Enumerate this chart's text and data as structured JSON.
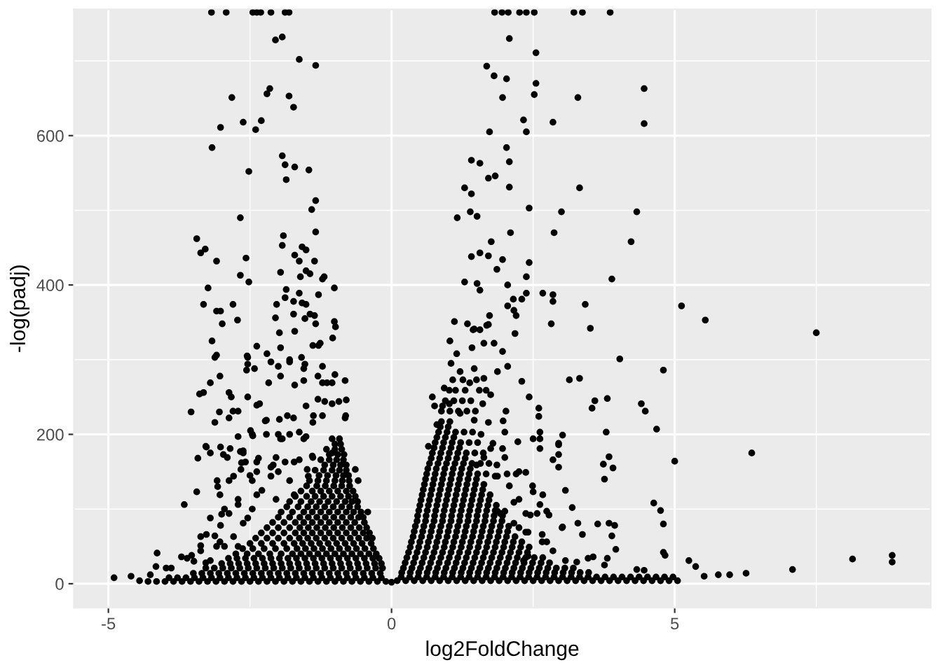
{
  "chart_data": {
    "type": "scatter",
    "xlabel": "log2FoldChange",
    "ylabel": "-log(padj)",
    "color": "#000000",
    "marker": "circle",
    "xlim": [
      -5.61,
      9.52
    ],
    "ylim": [
      -32,
      769
    ],
    "xticks": [
      -5,
      0,
      5
    ],
    "yticks": [
      0,
      200,
      400,
      600
    ],
    "grid": true,
    "x": [
      -3.18,
      -2.92,
      -2.45,
      -2.38,
      -2.31,
      -2.13,
      -1.88,
      -1.81,
      1.82,
      1.95,
      2.06,
      2.26,
      2.38,
      2.52,
      3.22,
      3.37,
      3.86,
      -2.05,
      -1.93,
      -1.63,
      -1.34,
      -2.82,
      -2.2,
      -2.15,
      -1.81,
      -1.73,
      -3.02,
      -2.62,
      -2.4,
      -2.3,
      -3.17,
      -2.52,
      -1.93,
      -1.88,
      -1.71,
      -1.46,
      -1.86,
      -1.34,
      -1.41,
      -2.67,
      -1.34,
      -3.44,
      -1.91,
      -3.37,
      -3.29,
      -3.09,
      -1.93,
      -1.58,
      -1.51,
      -2.57,
      -1.71,
      -1.63,
      -1.36,
      -1.96,
      -2.67,
      -2.52,
      -1.51,
      -1.44,
      -1.19,
      -1.22,
      -1.61,
      -3.24,
      -1.01,
      -1.86,
      -1.88,
      -1.63,
      -1.29,
      -3.32,
      -2.8,
      -3.09,
      -3.02,
      -2.03,
      -2.05,
      -1.73,
      -1.58,
      -1.51,
      -1.73,
      -1.44,
      -1.36,
      -1.53,
      -2.99,
      -2.72,
      -1.01,
      -0.99,
      -1.34,
      -4.9,
      -4.6,
      -4.26,
      -4.16,
      -3.89,
      -3.71,
      -3.66,
      -3.44,
      -3.42,
      -3.27,
      -3.54,
      -3.39,
      -3.17,
      -3.12,
      -3.09,
      -3.27,
      -3.37,
      -3.09,
      -3.12,
      -3.02,
      -3.0,
      -3.07,
      -2.87,
      -2.97,
      -2.9,
      -3.02,
      -2.85,
      -3.12,
      -3.04,
      -2.87,
      -2.8,
      -2.55,
      -2.38,
      -2.2,
      -1.98,
      -1.71,
      -1.29,
      -1.04,
      -2.56,
      -2.38,
      -2.23,
      -1.98,
      -1.73,
      -2.49,
      -2.45,
      -2.0,
      -1.93,
      -2.67,
      -2.65,
      -2.5,
      -2.35,
      -2.13,
      -2.0,
      -1.63,
      -1.49,
      -1.4,
      -0.82,
      -0.8,
      -0.82,
      -1.0,
      -1.14,
      -0.64,
      -0.59,
      -0.42,
      -1.96,
      -2.54,
      -2.42,
      -2.13,
      -2.0,
      -1.8,
      -1.59,
      -1.53,
      -1.39,
      -1.26,
      -1.22,
      -1.22,
      -3.2,
      -3.03,
      -3.32,
      -2.87,
      -2.83,
      -2.54,
      -2.71,
      -2.17,
      -1.96,
      -1.71,
      -1.55,
      -2.33,
      -2.21,
      -1.84,
      -1.51,
      -1.38,
      -1.3,
      -1.18,
      -1.05,
      -1.63,
      -1.51,
      -2.71,
      -3.28,
      -3.2,
      -2.62,
      -2.58,
      -3.08,
      -2.66,
      -2.38,
      -2.09,
      -1.88,
      -4.14,
      -3.98,
      -3.49,
      -3.61,
      -3.28,
      -3.37,
      -2.95,
      -2.79,
      -2.62,
      -2.46,
      -2.71,
      -2.29,
      -2.95,
      1.41,
      1.29,
      1.41,
      1.39,
      1.16,
      1.41,
      1.29,
      1.11,
      1.34,
      2.08,
      2.55,
      1.68,
      1.81,
      2.03,
      2.55,
      1.96,
      2.52,
      3.29,
      4.46,
      4.46,
      2.33,
      2.85,
      1.73,
      2.38,
      2.03,
      1.56,
      2.08,
      1.71,
      1.83,
      2.08,
      3.32,
      2.43,
      3.0,
      4.33,
      1.51,
      2.1,
      2.87,
      4.23,
      1.76,
      1.56,
      1.71,
      1.96,
      2.43,
      1.86,
      2.38,
      3.89,
      1.51,
      2.05,
      1.56,
      2.38,
      2.67,
      2.85,
      2.15,
      2.3,
      2.85,
      2.05,
      3.42,
      5.12,
      5.54,
      7.5,
      2.16,
      2.2,
      1.73,
      1.68,
      2.82,
      3.51,
      1.44,
      1.56,
      2.18,
      4.03,
      4.8,
      3.14,
      3.32,
      2.3,
      2.05,
      2.43,
      2.6,
      2.6,
      3.54,
      3.59,
      3.81,
      4.41,
      4.48,
      4.68,
      3.79,
      3.02,
      2.5,
      2.62,
      2.95,
      2.95,
      2.85,
      2.95,
      2.23,
      3.84,
      3.74,
      3.91,
      3.76,
      5.0,
      6.36,
      3.07,
      2.5,
      2.67,
      3.19,
      4.63,
      4.75,
      4.8,
      3.64,
      3.84,
      3.94,
      3.29,
      3.02,
      3.89,
      3.96,
      3.37,
      4.8,
      4.83,
      3.47,
      3.56,
      3.81,
      3.76,
      5.25,
      5.37,
      7.08,
      8.14,
      8.84,
      8.84,
      6.26,
      5.97,
      5.77,
      5.52,
      4.33,
      4.46,
      3.27,
      1.46,
      1.71,
      1.03,
      1.15,
      1.42,
      1.63,
      1.81,
      1.96,
      1.05,
      1.21,
      1.46,
      1.63,
      1.87,
      0.93,
      1.13,
      1.38,
      0.72,
      0.76,
      1.67,
      1.75,
      0.9,
      1.02,
      1.61,
      2.02,
      0.65,
      0.8,
      1.21,
      1.46,
      1.71,
      1.97,
      2.0,
      1.79,
      1.96,
      1.58,
      1.63,
      1.86,
      1.87,
      2.04,
      2.2,
      2.37,
      1.67,
      1.5,
      2.62,
      2.62,
      2.95,
      2.16,
      1.87,
      2.0,
      2.37,
      2.45,
      2.62,
      2.74,
      2.78,
      3.01,
      2.66,
      2.74,
      2.25,
      2.37,
      2.85,
      2.41,
      2.33,
      -4.3,
      -4.15,
      -4.0,
      -3.85,
      -3.7,
      -3.55,
      -3.4,
      -3.25,
      -3.1,
      -2.95,
      -2.8,
      -2.65,
      -2.5,
      -2.35,
      -2.2,
      -2.05,
      -1.9,
      -1.75,
      -1.6,
      -1.45,
      -1.3,
      -1.15,
      -1.0,
      -0.85,
      -0.7,
      -0.55,
      -0.4,
      -0.25,
      -0.1,
      0,
      -3.5,
      -3.35,
      -3.2,
      -3.05,
      -2.9,
      -2.75,
      -2.6,
      -2.45,
      -2.3,
      -2.15,
      -2.0,
      -1.85,
      -1.7,
      -1.55,
      -1.4,
      -1.25,
      -1.1,
      -0.95,
      -0.8,
      -0.65,
      -0.5,
      -0.35,
      -0.2,
      -3.0,
      -2.85,
      -2.7,
      -2.55,
      -2.4,
      -2.25,
      -2.1,
      -1.95,
      -1.8,
      -1.65,
      -1.5,
      -1.35,
      -1.2,
      -1.05,
      -0.9,
      -0.75,
      -0.6,
      -0.45,
      -0.3,
      -0.18,
      -2.75,
      -2.55,
      -2.35,
      -2.15,
      -1.95,
      -1.75,
      -1.6,
      -1.45,
      -1.3,
      -1.15,
      -1.0,
      -0.85,
      -0.7,
      -0.55,
      -0.4,
      -0.27,
      -2.5,
      -2.3,
      -2.1,
      -1.9,
      -1.72,
      -1.57,
      -1.42,
      -1.27,
      -1.12,
      -0.97,
      -0.82,
      -0.67,
      -0.52,
      -0.36,
      -2.3,
      -2.1,
      -1.9,
      -1.7,
      -1.55,
      -1.4,
      -1.25,
      -1.1,
      -0.95,
      -0.8,
      -0.65,
      -0.5,
      -0.39,
      -2.1,
      -1.9,
      -1.7,
      -1.55,
      -1.4,
      -1.25,
      -1.1,
      -0.95,
      -0.8,
      -0.65,
      -0.48,
      -1.95,
      -1.75,
      -1.55,
      -1.4,
      -1.25,
      -1.1,
      -0.95,
      -0.8,
      -0.67,
      -0.54,
      -1.8,
      -1.6,
      -1.42,
      -1.27,
      -1.12,
      -0.97,
      -0.82,
      -0.7,
      -0.6,
      -1.6,
      -1.4,
      -1.25,
      -1.1,
      -0.95,
      -0.8,
      -0.68,
      -1.45,
      -1.3,
      -1.15,
      -1.0,
      -0.87,
      -0.75,
      -1.35,
      -1.2,
      -1.05,
      -0.92,
      -0.8,
      -1.25,
      -1.1,
      -0.97,
      -0.85,
      -1.15,
      -1.0,
      -0.88,
      -1.05,
      -0.92,
      0.1,
      0.25,
      0.4,
      0.55,
      0.7,
      0.85,
      1.0,
      1.15,
      1.3,
      1.45,
      1.6,
      1.75,
      1.9,
      2.05,
      2.2,
      2.35,
      2.5,
      2.65,
      2.8,
      2.95,
      3.1,
      3.25,
      3.4,
      3.55,
      3.7,
      3.85,
      4.0,
      4.15,
      4.3,
      4.45,
      4.6,
      4.75,
      4.9,
      5.05,
      0.18,
      0.33,
      0.48,
      0.63,
      0.78,
      0.93,
      1.08,
      1.23,
      1.38,
      1.53,
      1.68,
      1.83,
      1.98,
      2.13,
      2.28,
      2.43,
      2.58,
      2.73,
      2.88,
      3.03,
      3.18,
      3.33,
      3.48,
      0.24,
      0.39,
      0.54,
      0.69,
      0.84,
      0.99,
      1.14,
      1.29,
      1.44,
      1.59,
      1.74,
      1.89,
      2.04,
      2.19,
      2.34,
      2.49,
      2.64,
      2.79,
      0.3,
      0.45,
      0.6,
      0.75,
      0.9,
      1.05,
      1.2,
      1.35,
      1.5,
      1.65,
      1.8,
      1.95,
      2.1,
      2.25,
      2.4,
      0.35,
      0.5,
      0.65,
      0.8,
      0.95,
      1.1,
      1.25,
      1.4,
      1.55,
      1.7,
      1.85,
      2.0,
      2.15,
      2.3,
      0.4,
      0.55,
      0.7,
      0.85,
      1.0,
      1.15,
      1.3,
      1.45,
      1.6,
      1.75,
      1.9,
      2.05,
      0.45,
      0.6,
      0.75,
      0.9,
      1.05,
      1.2,
      1.35,
      1.5,
      1.65,
      1.8,
      1.95,
      0.48,
      0.63,
      0.78,
      0.93,
      1.08,
      1.23,
      1.38,
      1.53,
      1.68,
      1.83,
      0.52,
      0.67,
      0.82,
      0.97,
      1.12,
      1.27,
      1.42,
      1.57,
      1.72,
      0.56,
      0.71,
      0.86,
      1.01,
      1.16,
      1.31,
      1.46,
      1.61,
      0.6,
      0.75,
      0.9,
      1.05,
      1.2,
      1.35,
      1.5,
      0.64,
      0.79,
      0.94,
      1.09,
      1.24,
      1.39,
      0.7,
      0.85,
      1.0,
      1.15,
      1.3,
      0.75,
      0.9,
      1.05,
      1.2,
      0.8,
      0.95,
      1.1,
      0.86,
      1.0,
      -4.45,
      -2.54,
      -1.8,
      -1.55,
      -1.3,
      -1.05,
      -0.93,
      -0.81,
      -1.22,
      -1.39,
      -1.55,
      -1.8,
      -1.96,
      -2.21,
      -2.46,
      -2.62,
      -2.38,
      -2.04,
      -1.72,
      -1.39,
      -1.05,
      -2.79,
      -2.46,
      -2.13,
      -1.8,
      -1.47,
      -3.03,
      -2.71,
      -2.38,
      -2.04,
      -1.72,
      -3.2,
      -2.87,
      -2.54,
      -3.37,
      -3.03,
      -2.71,
      -3.53,
      -3.2,
      -3.93,
      -3.78,
      -3.63,
      -3.48,
      -3.33,
      -3.18,
      -3.03,
      -2.88,
      -2.73,
      -2.58,
      -2.43,
      -2.28,
      -2.13,
      -1.98,
      -1.83,
      -1.68,
      -1.53,
      -1.38,
      -1.23,
      -1.08,
      -0.93,
      -0.78,
      -0.63,
      -0.48,
      -0.33,
      -0.18,
      -3.28,
      -3.13,
      -2.98,
      -2.83,
      -2.68,
      -2.53,
      -2.38,
      -2.23,
      -2.08,
      -1.93,
      -1.78,
      -1.63,
      -1.48,
      -1.33,
      -1.18,
      -1.03,
      -0.88,
      -0.73,
      -0.58,
      -0.43,
      -0.28,
      -0.16,
      -2.88,
      -2.73,
      -2.58,
      -2.43,
      -2.28,
      -2.13,
      -1.98,
      -1.83,
      -1.68,
      -1.53,
      -1.38,
      -1.23,
      -1.08,
      -0.93,
      -0.78,
      -0.63,
      -0.48,
      -0.33,
      -0.22,
      -2.63,
      -2.45,
      -2.25,
      -2.05,
      -1.85,
      -1.67,
      -1.52,
      -1.37,
      -1.22,
      -1.07,
      -0.92,
      -0.77,
      -0.62,
      -0.47,
      -0.32,
      -2.4,
      -2.2,
      -2.0,
      -1.8,
      -1.63,
      -1.48,
      -1.33,
      -1.18,
      -1.03,
      -0.88,
      -0.73,
      -0.58,
      -0.44,
      -0.34,
      -2.2,
      -2.0,
      -1.8,
      -1.62,
      -1.47,
      -1.32,
      -1.17,
      -1.02,
      -0.87,
      -0.72,
      -0.57,
      -0.44,
      -2.0,
      -1.8,
      -1.62,
      -1.47,
      -1.32,
      -1.17,
      -1.02,
      -0.87,
      -0.72,
      -0.58,
      -0.5,
      -1.85,
      -1.65,
      -1.48,
      -1.33,
      -1.18,
      -1.03,
      -0.88,
      -0.74,
      -0.6,
      -1.7,
      -1.5,
      -1.35,
      -1.2,
      -1.05,
      -0.9,
      -0.76,
      -0.64,
      -1.5,
      -1.32,
      -1.17,
      -1.02,
      -0.88,
      -0.74,
      -1.28,
      -1.13,
      -0.98,
      -0.85,
      -0.76,
      -1.18,
      -1.03,
      -0.9,
      -0.8,
      -1.1,
      -0.95,
      -0.84,
      -1.0,
      -0.9,
      0.17,
      0.32,
      0.47,
      0.62,
      0.77,
      0.92,
      1.07,
      1.22,
      1.37,
      1.52,
      1.67,
      1.82,
      1.97,
      2.12,
      2.27,
      2.42,
      2.57,
      2.72,
      2.87,
      3.02,
      3.17,
      3.32,
      3.47,
      3.62,
      3.77,
      3.92,
      4.07,
      4.22,
      4.37,
      4.52,
      4.67,
      4.82,
      4.97,
      0.21,
      0.36,
      0.51,
      0.66,
      0.81,
      0.96,
      1.11,
      1.26,
      1.41,
      1.56,
      1.71,
      1.86,
      2.01,
      2.16,
      2.31,
      2.46,
      2.61,
      2.76,
      2.91,
      3.06,
      3.21,
      0.27,
      0.42,
      0.57,
      0.72,
      0.87,
      1.02,
      1.17,
      1.32,
      1.47,
      1.62,
      1.77,
      1.92,
      2.07,
      2.22,
      2.37,
      2.52,
      2.67,
      0.33,
      0.48,
      0.63,
      0.78,
      0.93,
      1.08,
      1.23,
      1.38,
      1.53,
      1.68,
      1.83,
      1.98,
      2.13,
      2.28,
      2.43,
      0.38,
      0.53,
      0.68,
      0.83,
      0.98,
      1.13,
      1.28,
      1.43,
      1.58,
      1.73,
      1.88,
      2.03,
      2.18,
      0.42,
      0.57,
      0.72,
      0.87,
      1.02,
      1.17,
      1.32,
      1.47,
      1.62,
      1.77,
      1.92,
      2.07,
      0.46,
      0.61,
      0.76,
      0.91,
      1.06,
      1.21,
      1.36,
      1.51,
      1.66,
      1.81,
      1.96,
      0.5,
      0.65,
      0.8,
      0.95,
      1.1,
      1.25,
      1.4,
      1.55,
      1.7,
      1.85,
      0.54,
      0.69,
      0.84,
      0.99,
      1.14,
      1.29,
      1.44,
      1.59,
      1.74,
      0.58,
      0.73,
      0.88,
      1.03,
      1.18,
      1.33,
      1.48,
      1.63,
      0.62,
      0.77,
      0.92,
      1.07,
      1.22,
      1.37,
      1.52,
      0.67,
      0.82,
      0.97,
      1.12,
      1.27,
      1.42,
      0.72,
      0.87,
      1.02,
      1.17,
      1.32,
      0.77,
      0.92,
      1.07,
      1.22,
      0.83,
      0.98,
      1.13,
      0.88,
      1.03,
      1.92,
      2.16,
      2.41,
      1.83,
      2.08,
      2.25,
      2.57,
      2.66,
      2.0,
      1.75,
      2.25,
      2.49,
      3.07,
      0.88,
      1.03,
      1.18,
      1.33,
      1.48,
      0.95,
      1.1,
      1.25,
      1.4,
      1.02,
      1.3,
      1.55,
      1.08,
      1.26,
      1.5,
      1.28,
      1.43,
      1.37,
      1.52,
      1.47,
      1.62,
      1.57,
      1.72
    ],
    "values": [
      765,
      765,
      765,
      765,
      765,
      765,
      765,
      765,
      765,
      765,
      765,
      765,
      765,
      765,
      765,
      765,
      765,
      728,
      732,
      702,
      694,
      651,
      656,
      663,
      653,
      638,
      611,
      618,
      608,
      620,
      584,
      552,
      573,
      561,
      558,
      554,
      541,
      513,
      501,
      490,
      471,
      462,
      466,
      443,
      448,
      432,
      453,
      451,
      447,
      436,
      440,
      432,
      432,
      417,
      413,
      404,
      419,
      415,
      411,
      408,
      411,
      396,
      396,
      394,
      383,
      389,
      387,
      374,
      374,
      365,
      365,
      374,
      356,
      378,
      376,
      374,
      361,
      361,
      359,
      355,
      348,
      353,
      351,
      344,
      348,
      8,
      10,
      12,
      23,
      21,
      36,
      106,
      123,
      168,
      183,
      230,
      254,
      325,
      303,
      306,
      66,
      51,
      50,
      64,
      78,
      93,
      130,
      138,
      173,
      169,
      183,
      181,
      216,
      230,
      222,
      231,
      305,
      318,
      308,
      336,
      338,
      319,
      329,
      286,
      239,
      218,
      220,
      222,
      205,
      198,
      200,
      194,
      177,
      162,
      145,
      168,
      156,
      150,
      166,
      153,
      171,
      222,
      246,
      272,
      280,
      269,
      153,
      138,
      96,
      316,
      294,
      288,
      297,
      291,
      300,
      303,
      294,
      319,
      322,
      291,
      269,
      269,
      278,
      256,
      256,
      250,
      250,
      231,
      269,
      278,
      266,
      272,
      241,
      219,
      225,
      238,
      225,
      247,
      244,
      241,
      203,
      197,
      197,
      184,
      175,
      178,
      163,
      138,
      153,
      150,
      159,
      163,
      41,
      21,
      30,
      34,
      28,
      44,
      50,
      63,
      81,
      100,
      106,
      125,
      100,
      567,
      530,
      522,
      498,
      490,
      438,
      404,
      351,
      348,
      730,
      711,
      693,
      680,
      676,
      670,
      651,
      655,
      651,
      663,
      616,
      621,
      618,
      605,
      605,
      584,
      563,
      565,
      543,
      546,
      531,
      530,
      503,
      498,
      498,
      492,
      470,
      470,
      458,
      458,
      443,
      439,
      434,
      430,
      421,
      411,
      408,
      402,
      400,
      393,
      389,
      389,
      387,
      381,
      381,
      378,
      372,
      374,
      372,
      353,
      336,
      366,
      359,
      359,
      346,
      348,
      342,
      340,
      340,
      335,
      301,
      286,
      273,
      275,
      271,
      291,
      250,
      235,
      224,
      235,
      245,
      248,
      241,
      231,
      207,
      203,
      199,
      194,
      194,
      186,
      173,
      166,
      156,
      190,
      170,
      160,
      155,
      140,
      164,
      175,
      125,
      123,
      119,
      102,
      108,
      98,
      80,
      80,
      81,
      78,
      81,
      76,
      64,
      46,
      66,
      42,
      38,
      34,
      36,
      34,
      25,
      31,
      23,
      19,
      33,
      38,
      29,
      14,
      12,
      12,
      10,
      19,
      18,
      29,
      341,
      347,
      325,
      308,
      316,
      322,
      322,
      311,
      295,
      284,
      288,
      275,
      284,
      262,
      259,
      269,
      250,
      238,
      259,
      253,
      238,
      241,
      241,
      231,
      184,
      213,
      228,
      219,
      216,
      218,
      203,
      188,
      181,
      200,
      169,
      159,
      144,
      147,
      147,
      149,
      147,
      159,
      203,
      181,
      188,
      109,
      97,
      97,
      94,
      92,
      106,
      97,
      92,
      75,
      66,
      56,
      75,
      69,
      44,
      37,
      31,
      3,
      3,
      3,
      3,
      3,
      3,
      3,
      3,
      3,
      3,
      3,
      3,
      3,
      3,
      3,
      3,
      3,
      3,
      3,
      3,
      3,
      3,
      3,
      3,
      3,
      3,
      3,
      3,
      3,
      2,
      14,
      14,
      14,
      14,
      14,
      14,
      14,
      14,
      14,
      14,
      14,
      14,
      14,
      14,
      14,
      14,
      14,
      14,
      14,
      14,
      14,
      14,
      14,
      27,
      27,
      27,
      27,
      27,
      27,
      27,
      27,
      27,
      27,
      27,
      27,
      27,
      27,
      27,
      27,
      27,
      27,
      27,
      27,
      40,
      40,
      40,
      40,
      40,
      40,
      40,
      40,
      40,
      40,
      40,
      40,
      40,
      40,
      40,
      40,
      54,
      54,
      54,
      54,
      54,
      54,
      54,
      54,
      54,
      54,
      54,
      54,
      54,
      54,
      68,
      68,
      68,
      68,
      68,
      68,
      68,
      68,
      68,
      68,
      68,
      68,
      68,
      82,
      82,
      82,
      82,
      82,
      82,
      82,
      82,
      82,
      82,
      82,
      96,
      96,
      96,
      96,
      96,
      96,
      96,
      96,
      96,
      96,
      110,
      110,
      110,
      110,
      110,
      110,
      110,
      110,
      110,
      124,
      124,
      124,
      124,
      124,
      124,
      124,
      138,
      138,
      138,
      138,
      138,
      138,
      152,
      152,
      152,
      152,
      152,
      166,
      166,
      166,
      166,
      180,
      180,
      180,
      194,
      194,
      4,
      4,
      4,
      4,
      4,
      4,
      4,
      4,
      4,
      4,
      4,
      4,
      4,
      4,
      4,
      4,
      4,
      4,
      4,
      4,
      4,
      4,
      4,
      4,
      4,
      4,
      4,
      4,
      4,
      4,
      4,
      4,
      4,
      4,
      15,
      15,
      15,
      15,
      15,
      15,
      15,
      15,
      15,
      15,
      15,
      15,
      15,
      15,
      15,
      15,
      15,
      15,
      15,
      15,
      15,
      15,
      15,
      28,
      28,
      28,
      28,
      28,
      28,
      28,
      28,
      28,
      28,
      28,
      28,
      28,
      28,
      28,
      28,
      28,
      28,
      42,
      42,
      42,
      42,
      42,
      42,
      42,
      42,
      42,
      42,
      42,
      42,
      42,
      42,
      42,
      56,
      56,
      56,
      56,
      56,
      56,
      56,
      56,
      56,
      56,
      56,
      56,
      56,
      56,
      70,
      70,
      70,
      70,
      70,
      70,
      70,
      70,
      70,
      70,
      70,
      70,
      84,
      84,
      84,
      84,
      84,
      84,
      84,
      84,
      84,
      84,
      84,
      98,
      98,
      98,
      98,
      98,
      98,
      98,
      98,
      98,
      98,
      112,
      112,
      112,
      112,
      112,
      112,
      112,
      112,
      112,
      126,
      126,
      126,
      126,
      126,
      126,
      126,
      126,
      140,
      140,
      140,
      140,
      140,
      140,
      140,
      154,
      154,
      154,
      154,
      154,
      154,
      168,
      168,
      168,
      168,
      168,
      182,
      182,
      182,
      182,
      196,
      196,
      196,
      210,
      210,
      4,
      303,
      297,
      288,
      278,
      269,
      244,
      225,
      225,
      216,
      194,
      200,
      194,
      200,
      200,
      175,
      163,
      169,
      163,
      169,
      175,
      144,
      138,
      144,
      138,
      144,
      119,
      113,
      119,
      113,
      119,
      88,
      94,
      88,
      63,
      56,
      50,
      38,
      31,
      8,
      8,
      8,
      8,
      8,
      8,
      8,
      8,
      8,
      8,
      8,
      8,
      8,
      8,
      8,
      8,
      8,
      8,
      8,
      8,
      8,
      8,
      8,
      8,
      8,
      8,
      21,
      21,
      21,
      21,
      21,
      21,
      21,
      21,
      21,
      21,
      21,
      21,
      21,
      21,
      21,
      21,
      21,
      21,
      21,
      21,
      21,
      21,
      34,
      34,
      34,
      34,
      34,
      34,
      34,
      34,
      34,
      34,
      34,
      34,
      34,
      34,
      34,
      34,
      34,
      34,
      34,
      47,
      47,
      47,
      47,
      47,
      47,
      47,
      47,
      47,
      47,
      47,
      47,
      47,
      47,
      47,
      61,
      61,
      61,
      61,
      61,
      61,
      61,
      61,
      61,
      61,
      61,
      61,
      61,
      61,
      75,
      75,
      75,
      75,
      75,
      75,
      75,
      75,
      75,
      75,
      75,
      75,
      89,
      89,
      89,
      89,
      89,
      89,
      89,
      89,
      89,
      89,
      89,
      103,
      103,
      103,
      103,
      103,
      103,
      103,
      103,
      103,
      117,
      117,
      117,
      117,
      117,
      117,
      117,
      117,
      131,
      131,
      131,
      131,
      131,
      131,
      145,
      145,
      145,
      145,
      145,
      159,
      159,
      159,
      159,
      173,
      173,
      173,
      187,
      187,
      9,
      9,
      9,
      9,
      9,
      9,
      9,
      9,
      9,
      9,
      9,
      9,
      9,
      9,
      9,
      9,
      9,
      9,
      9,
      9,
      9,
      9,
      9,
      9,
      9,
      9,
      9,
      9,
      9,
      9,
      9,
      9,
      9,
      21,
      21,
      21,
      21,
      21,
      21,
      21,
      21,
      21,
      21,
      21,
      21,
      21,
      21,
      21,
      21,
      21,
      21,
      21,
      21,
      21,
      35,
      35,
      35,
      35,
      35,
      35,
      35,
      35,
      35,
      35,
      35,
      35,
      35,
      35,
      35,
      35,
      35,
      49,
      49,
      49,
      49,
      49,
      49,
      49,
      49,
      49,
      49,
      49,
      49,
      49,
      49,
      49,
      63,
      63,
      63,
      63,
      63,
      63,
      63,
      63,
      63,
      63,
      63,
      63,
      63,
      77,
      77,
      77,
      77,
      77,
      77,
      77,
      77,
      77,
      77,
      77,
      77,
      91,
      91,
      91,
      91,
      91,
      91,
      91,
      91,
      91,
      91,
      91,
      105,
      105,
      105,
      105,
      105,
      105,
      105,
      105,
      105,
      105,
      119,
      119,
      119,
      119,
      119,
      119,
      119,
      119,
      119,
      133,
      133,
      133,
      133,
      133,
      133,
      133,
      133,
      147,
      147,
      147,
      147,
      147,
      147,
      147,
      161,
      161,
      161,
      161,
      161,
      161,
      175,
      175,
      175,
      175,
      175,
      189,
      189,
      189,
      189,
      203,
      203,
      203,
      217,
      217,
      94,
      81,
      69,
      144,
      131,
      113,
      94,
      56,
      169,
      181,
      150,
      131,
      31,
      231,
      231,
      231,
      231,
      231,
      245,
      245,
      245,
      245,
      259,
      259,
      259,
      273,
      273,
      273,
      203,
      203,
      189,
      189,
      175,
      175,
      161,
      161
    ]
  }
}
